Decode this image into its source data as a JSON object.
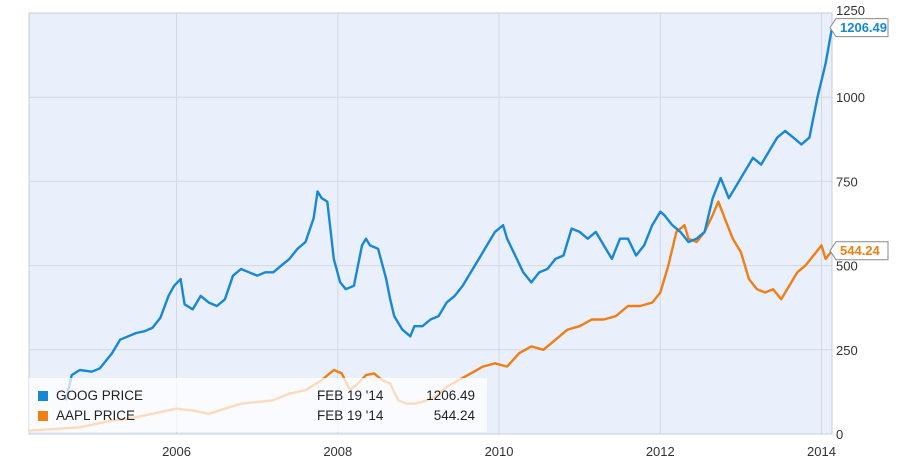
{
  "chart_data": {
    "type": "line",
    "title": "",
    "xlabel": "",
    "ylabel": "",
    "xlim": [
      2004.17,
      2014.13
    ],
    "ylim": [
      0,
      1250
    ],
    "x_ticks": [
      2006,
      2008,
      2010,
      2012,
      2014
    ],
    "x_tick_labels": [
      "2006",
      "2008",
      "2010",
      "2012",
      "2014"
    ],
    "y_ticks": [
      0,
      250,
      500,
      750,
      1000,
      1250
    ],
    "y_tick_labels": [
      "0",
      "250",
      "500",
      "750",
      "1000",
      "1250"
    ],
    "grid": true,
    "legend_position": "bottom-left",
    "series": [
      {
        "name": "GOOG PRICE",
        "color": "#1787d6",
        "last_date": "FEB 19 '14",
        "last_value": "1206.49",
        "badge": "1206.49",
        "x": [
          2004.63,
          2004.7,
          2004.8,
          2004.95,
          2005.05,
          2005.2,
          2005.3,
          2005.4,
          2005.5,
          2005.6,
          2005.7,
          2005.8,
          2005.9,
          2005.97,
          2006.05,
          2006.1,
          2006.2,
          2006.3,
          2006.4,
          2006.5,
          2006.6,
          2006.7,
          2006.8,
          2006.9,
          2007.0,
          2007.1,
          2007.2,
          2007.3,
          2007.4,
          2007.5,
          2007.6,
          2007.7,
          2007.75,
          2007.8,
          2007.87,
          2007.95,
          2008.03,
          2008.1,
          2008.2,
          2008.3,
          2008.35,
          2008.4,
          2008.5,
          2008.6,
          2008.65,
          2008.7,
          2008.8,
          2008.9,
          2008.95,
          2009.05,
          2009.15,
          2009.25,
          2009.35,
          2009.45,
          2009.55,
          2009.65,
          2009.75,
          2009.85,
          2009.95,
          2010.05,
          2010.1,
          2010.2,
          2010.3,
          2010.4,
          2010.5,
          2010.6,
          2010.7,
          2010.8,
          2010.9,
          2011.0,
          2011.1,
          2011.2,
          2011.3,
          2011.4,
          2011.5,
          2011.6,
          2011.7,
          2011.8,
          2011.9,
          2012.0,
          2012.05,
          2012.15,
          2012.25,
          2012.35,
          2012.45,
          2012.55,
          2012.65,
          2012.75,
          2012.85,
          2012.95,
          2013.05,
          2013.15,
          2013.25,
          2013.35,
          2013.45,
          2013.55,
          2013.65,
          2013.75,
          2013.85,
          2013.95,
          2014.05,
          2014.13
        ],
        "y": [
          100,
          175,
          190,
          185,
          195,
          240,
          280,
          290,
          300,
          305,
          315,
          345,
          410,
          440,
          460,
          385,
          370,
          410,
          390,
          380,
          400,
          470,
          490,
          480,
          470,
          480,
          480,
          500,
          520,
          550,
          570,
          640,
          720,
          700,
          690,
          520,
          450,
          430,
          440,
          560,
          580,
          560,
          550,
          460,
          400,
          350,
          310,
          290,
          320,
          320,
          340,
          350,
          390,
          410,
          440,
          480,
          520,
          560,
          600,
          620,
          580,
          530,
          480,
          450,
          480,
          490,
          520,
          530,
          610,
          600,
          580,
          600,
          560,
          520,
          580,
          580,
          530,
          560,
          620,
          660,
          650,
          620,
          600,
          570,
          580,
          600,
          700,
          760,
          700,
          740,
          780,
          820,
          800,
          840,
          880,
          900,
          880,
          860,
          880,
          1000,
          1100,
          1206.49
        ]
      },
      {
        "name": "AAPL PRICE",
        "color": "#ef7e14",
        "last_date": "FEB 19 '14",
        "last_value": "544.24",
        "badge": "544.24",
        "x": [
          2004.17,
          2004.5,
          2004.8,
          2005.0,
          2005.2,
          2005.4,
          2005.6,
          2005.8,
          2006.0,
          2006.2,
          2006.4,
          2006.6,
          2006.8,
          2007.0,
          2007.2,
          2007.4,
          2007.6,
          2007.8,
          2007.95,
          2008.05,
          2008.15,
          2008.25,
          2008.35,
          2008.45,
          2008.55,
          2008.65,
          2008.75,
          2008.85,
          2008.95,
          2009.05,
          2009.2,
          2009.35,
          2009.5,
          2009.65,
          2009.8,
          2009.95,
          2010.1,
          2010.25,
          2010.4,
          2010.55,
          2010.7,
          2010.85,
          2011.0,
          2011.15,
          2011.3,
          2011.45,
          2011.6,
          2011.75,
          2011.9,
          2012.0,
          2012.1,
          2012.2,
          2012.3,
          2012.35,
          2012.45,
          2012.55,
          2012.65,
          2012.72,
          2012.8,
          2012.9,
          2013.0,
          2013.1,
          2013.2,
          2013.3,
          2013.4,
          2013.5,
          2013.6,
          2013.7,
          2013.8,
          2013.9,
          2014.0,
          2014.05,
          2014.13
        ],
        "y": [
          10,
          15,
          20,
          30,
          40,
          45,
          55,
          65,
          75,
          70,
          60,
          75,
          90,
          95,
          100,
          120,
          130,
          160,
          190,
          180,
          130,
          150,
          175,
          180,
          160,
          150,
          100,
          90,
          90,
          95,
          110,
          140,
          160,
          180,
          200,
          210,
          200,
          240,
          260,
          250,
          280,
          310,
          320,
          340,
          340,
          350,
          380,
          380,
          390,
          420,
          500,
          600,
          620,
          580,
          570,
          600,
          650,
          690,
          640,
          580,
          540,
          460,
          430,
          420,
          430,
          400,
          440,
          480,
          500,
          530,
          560,
          520,
          544.24
        ]
      }
    ]
  }
}
